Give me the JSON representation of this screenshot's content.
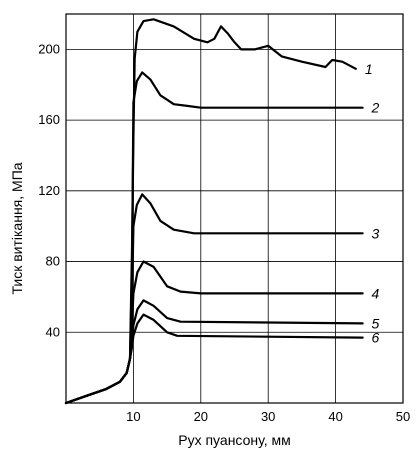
{
  "chart_data": {
    "type": "line",
    "xlabel": "Рух пуансону,  мм",
    "ylabel": "Тиск  витікання,  МПа",
    "xlim": [
      0,
      50
    ],
    "ylim": [
      0,
      220
    ],
    "xticks": [
      10,
      20,
      30,
      40,
      50
    ],
    "yticks": [
      40,
      80,
      120,
      160,
      200
    ],
    "grid": true,
    "series": [
      {
        "name": "1",
        "label_at": [
          44,
          188
        ],
        "points": [
          [
            0,
            0
          ],
          [
            3,
            4
          ],
          [
            6,
            8
          ],
          [
            8,
            12
          ],
          [
            9,
            17
          ],
          [
            9.5,
            25
          ],
          [
            9.8,
            90
          ],
          [
            10,
            150
          ],
          [
            10.2,
            195
          ],
          [
            10.6,
            210
          ],
          [
            11.5,
            216
          ],
          [
            13,
            217
          ],
          [
            16,
            213
          ],
          [
            19,
            206
          ],
          [
            21,
            204
          ],
          [
            22,
            206
          ],
          [
            23,
            213
          ],
          [
            24,
            209
          ],
          [
            25,
            204
          ],
          [
            26,
            200
          ],
          [
            28,
            200
          ],
          [
            30,
            202
          ],
          [
            32,
            196
          ],
          [
            35,
            193
          ],
          [
            38.5,
            190
          ],
          [
            39.5,
            194
          ],
          [
            41,
            193
          ],
          [
            43,
            189
          ]
        ]
      },
      {
        "name": "2",
        "points": [
          [
            0,
            0
          ],
          [
            3,
            4
          ],
          [
            6,
            8
          ],
          [
            8,
            12
          ],
          [
            9,
            17
          ],
          [
            9.5,
            25
          ],
          [
            9.8,
            80
          ],
          [
            10,
            170
          ],
          [
            10.5,
            182
          ],
          [
            11.3,
            187
          ],
          [
            12.5,
            183
          ],
          [
            14,
            174
          ],
          [
            16,
            169
          ],
          [
            18,
            168
          ],
          [
            20,
            167
          ],
          [
            44,
            167
          ]
        ]
      },
      {
        "name": "3",
        "points": [
          [
            0,
            0
          ],
          [
            3,
            4
          ],
          [
            6,
            8
          ],
          [
            8,
            12
          ],
          [
            9,
            17
          ],
          [
            9.5,
            25
          ],
          [
            9.8,
            60
          ],
          [
            10,
            100
          ],
          [
            10.5,
            112
          ],
          [
            11.3,
            118
          ],
          [
            12.5,
            113
          ],
          [
            14,
            103
          ],
          [
            16,
            98
          ],
          [
            19,
            96
          ],
          [
            44,
            96
          ]
        ]
      },
      {
        "name": "4",
        "points": [
          [
            0,
            0
          ],
          [
            3,
            4
          ],
          [
            6,
            8
          ],
          [
            8,
            12
          ],
          [
            9,
            17
          ],
          [
            9.5,
            25
          ],
          [
            9.8,
            45
          ],
          [
            10,
            62
          ],
          [
            10.6,
            74
          ],
          [
            11.5,
            80
          ],
          [
            13,
            77
          ],
          [
            15,
            66
          ],
          [
            17,
            63
          ],
          [
            20,
            62
          ],
          [
            44,
            62
          ]
        ]
      },
      {
        "name": "5",
        "points": [
          [
            0,
            0
          ],
          [
            3,
            4
          ],
          [
            6,
            8
          ],
          [
            8,
            12
          ],
          [
            9,
            17
          ],
          [
            9.5,
            25
          ],
          [
            9.8,
            35
          ],
          [
            10,
            44
          ],
          [
            10.6,
            53
          ],
          [
            11.5,
            58
          ],
          [
            13,
            55
          ],
          [
            15,
            48
          ],
          [
            17,
            46
          ],
          [
            44,
            45
          ]
        ]
      },
      {
        "name": "6",
        "points": [
          [
            0,
            0
          ],
          [
            3,
            4
          ],
          [
            6,
            8
          ],
          [
            8,
            12
          ],
          [
            9,
            17
          ],
          [
            9.5,
            25
          ],
          [
            9.8,
            32
          ],
          [
            10,
            38
          ],
          [
            10.6,
            45
          ],
          [
            11.5,
            50
          ],
          [
            13,
            47
          ],
          [
            15,
            40
          ],
          [
            16.5,
            38
          ],
          [
            44,
            37
          ]
        ]
      }
    ]
  }
}
